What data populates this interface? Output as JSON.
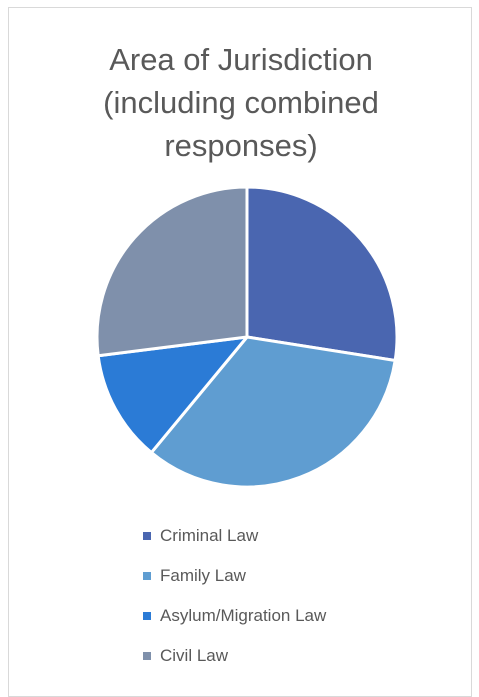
{
  "chart_data": {
    "type": "pie",
    "title": "Area of Jurisdiction\n(including combined\nresponses)",
    "categories": [
      "Criminal Law",
      "Family Law",
      "Asylum/Migration Law",
      "Civil Law"
    ],
    "values": [
      27.5,
      33.5,
      12.0,
      27.0
    ],
    "value_unit": "percent (estimated)",
    "colors": [
      "#4a66b0",
      "#5f9dd1",
      "#2b7bd6",
      "#7f90ab"
    ],
    "start_angle": "12 o'clock",
    "direction": "clockwise",
    "slice_separator_color": "#ffffff",
    "legend_position": "bottom"
  }
}
